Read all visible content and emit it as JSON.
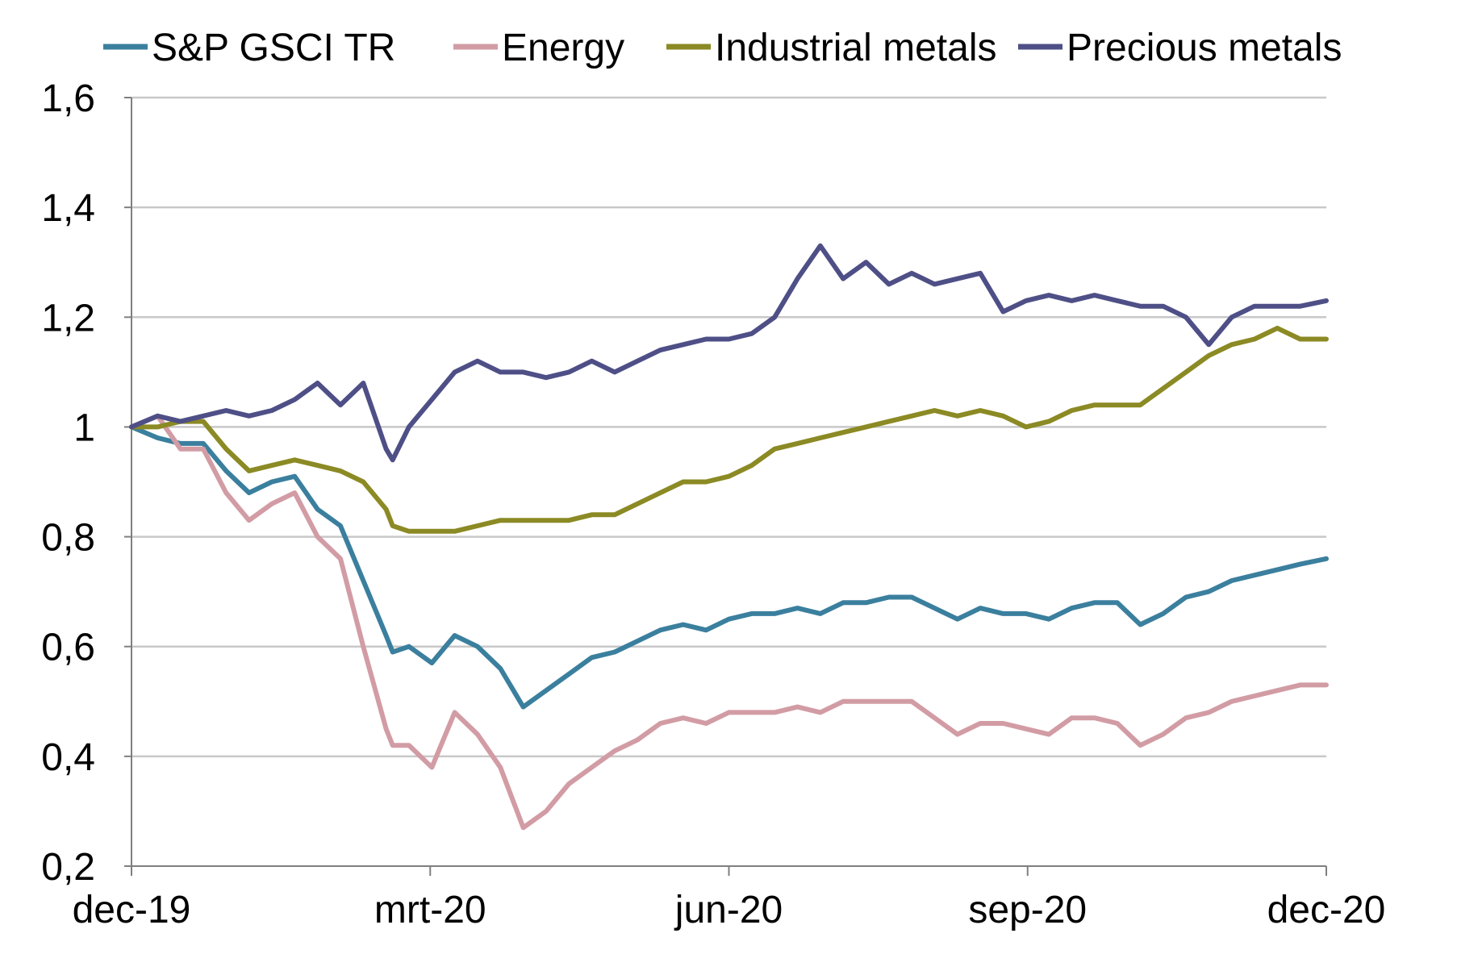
{
  "chart_data": {
    "type": "line",
    "title": "",
    "xlabel": "",
    "ylabel": "",
    "ylim": [
      0.2,
      1.6
    ],
    "yticks": [
      "0,2",
      "0,4",
      "0,6",
      "0,8",
      "1",
      "1,2",
      "1,4",
      "1,6"
    ],
    "xticks": [
      "dec-19",
      "mrt-20",
      "jun-20",
      "sep-20",
      "dec-20"
    ],
    "xlim": [
      "2019-12-31",
      "2020-12-31"
    ],
    "grid": "horizontal",
    "legend_position": "top",
    "series": [
      {
        "name": "S&P GSCI TR",
        "color": "#3b7f9e",
        "x": [
          "2019-12-31",
          "2020-01-08",
          "2020-01-15",
          "2020-01-22",
          "2020-01-29",
          "2020-02-05",
          "2020-02-12",
          "2020-02-19",
          "2020-02-26",
          "2020-03-04",
          "2020-03-11",
          "2020-03-18",
          "2020-03-20",
          "2020-03-25",
          "2020-04-01",
          "2020-04-08",
          "2020-04-15",
          "2020-04-22",
          "2020-04-29",
          "2020-05-06",
          "2020-05-13",
          "2020-05-20",
          "2020-05-27",
          "2020-06-03",
          "2020-06-10",
          "2020-06-17",
          "2020-06-24",
          "2020-07-01",
          "2020-07-08",
          "2020-07-15",
          "2020-07-22",
          "2020-07-29",
          "2020-08-05",
          "2020-08-12",
          "2020-08-19",
          "2020-08-26",
          "2020-09-02",
          "2020-09-09",
          "2020-09-16",
          "2020-09-23",
          "2020-09-30",
          "2020-10-07",
          "2020-10-14",
          "2020-10-21",
          "2020-10-28",
          "2020-11-04",
          "2020-11-11",
          "2020-11-18",
          "2020-11-25",
          "2020-12-02",
          "2020-12-09",
          "2020-12-16",
          "2020-12-23",
          "2020-12-31"
        ],
        "values": [
          1.0,
          0.98,
          0.97,
          0.97,
          0.92,
          0.88,
          0.9,
          0.91,
          0.85,
          0.82,
          0.72,
          0.62,
          0.59,
          0.6,
          0.57,
          0.62,
          0.6,
          0.56,
          0.49,
          0.52,
          0.55,
          0.58,
          0.59,
          0.61,
          0.63,
          0.64,
          0.63,
          0.65,
          0.66,
          0.66,
          0.67,
          0.66,
          0.68,
          0.68,
          0.69,
          0.69,
          0.67,
          0.65,
          0.67,
          0.66,
          0.66,
          0.65,
          0.67,
          0.68,
          0.68,
          0.64,
          0.66,
          0.69,
          0.7,
          0.72,
          0.73,
          0.74,
          0.75,
          0.76
        ]
      },
      {
        "name": "Energy",
        "color": "#d29ca5",
        "x": [
          "2019-12-31",
          "2020-01-08",
          "2020-01-15",
          "2020-01-22",
          "2020-01-29",
          "2020-02-05",
          "2020-02-12",
          "2020-02-19",
          "2020-02-26",
          "2020-03-04",
          "2020-03-11",
          "2020-03-18",
          "2020-03-20",
          "2020-03-25",
          "2020-04-01",
          "2020-04-08",
          "2020-04-15",
          "2020-04-22",
          "2020-04-29",
          "2020-05-06",
          "2020-05-13",
          "2020-05-20",
          "2020-05-27",
          "2020-06-03",
          "2020-06-10",
          "2020-06-17",
          "2020-06-24",
          "2020-07-01",
          "2020-07-08",
          "2020-07-15",
          "2020-07-22",
          "2020-07-29",
          "2020-08-05",
          "2020-08-12",
          "2020-08-19",
          "2020-08-26",
          "2020-09-02",
          "2020-09-09",
          "2020-09-16",
          "2020-09-23",
          "2020-09-30",
          "2020-10-07",
          "2020-10-14",
          "2020-10-21",
          "2020-10-28",
          "2020-11-04",
          "2020-11-11",
          "2020-11-18",
          "2020-11-25",
          "2020-12-02",
          "2020-12-09",
          "2020-12-16",
          "2020-12-23",
          "2020-12-31"
        ],
        "values": [
          1.0,
          1.02,
          0.96,
          0.96,
          0.88,
          0.83,
          0.86,
          0.88,
          0.8,
          0.76,
          0.6,
          0.45,
          0.42,
          0.42,
          0.38,
          0.48,
          0.44,
          0.38,
          0.27,
          0.3,
          0.35,
          0.38,
          0.41,
          0.43,
          0.46,
          0.47,
          0.46,
          0.48,
          0.48,
          0.48,
          0.49,
          0.48,
          0.5,
          0.5,
          0.5,
          0.5,
          0.47,
          0.44,
          0.46,
          0.46,
          0.45,
          0.44,
          0.47,
          0.47,
          0.46,
          0.42,
          0.44,
          0.47,
          0.48,
          0.5,
          0.51,
          0.52,
          0.53,
          0.53
        ]
      },
      {
        "name": "Industrial metals",
        "color": "#8b8a24",
        "x": [
          "2019-12-31",
          "2020-01-08",
          "2020-01-15",
          "2020-01-22",
          "2020-01-29",
          "2020-02-05",
          "2020-02-12",
          "2020-02-19",
          "2020-02-26",
          "2020-03-04",
          "2020-03-11",
          "2020-03-18",
          "2020-03-20",
          "2020-03-25",
          "2020-04-01",
          "2020-04-08",
          "2020-04-15",
          "2020-04-22",
          "2020-04-29",
          "2020-05-06",
          "2020-05-13",
          "2020-05-20",
          "2020-05-27",
          "2020-06-03",
          "2020-06-10",
          "2020-06-17",
          "2020-06-24",
          "2020-07-01",
          "2020-07-08",
          "2020-07-15",
          "2020-07-22",
          "2020-07-29",
          "2020-08-05",
          "2020-08-12",
          "2020-08-19",
          "2020-08-26",
          "2020-09-02",
          "2020-09-09",
          "2020-09-16",
          "2020-09-23",
          "2020-09-30",
          "2020-10-07",
          "2020-10-14",
          "2020-10-21",
          "2020-10-28",
          "2020-11-04",
          "2020-11-11",
          "2020-11-18",
          "2020-11-25",
          "2020-12-02",
          "2020-12-09",
          "2020-12-16",
          "2020-12-23",
          "2020-12-31"
        ],
        "values": [
          1.0,
          1.0,
          1.01,
          1.01,
          0.96,
          0.92,
          0.93,
          0.94,
          0.93,
          0.92,
          0.9,
          0.85,
          0.82,
          0.81,
          0.81,
          0.81,
          0.82,
          0.83,
          0.83,
          0.83,
          0.83,
          0.84,
          0.84,
          0.86,
          0.88,
          0.9,
          0.9,
          0.91,
          0.93,
          0.96,
          0.97,
          0.98,
          0.99,
          1.0,
          1.01,
          1.02,
          1.03,
          1.02,
          1.03,
          1.02,
          1.0,
          1.01,
          1.03,
          1.04,
          1.04,
          1.04,
          1.07,
          1.1,
          1.13,
          1.15,
          1.16,
          1.18,
          1.16,
          1.16
        ]
      },
      {
        "name": "Precious metals",
        "color": "#4f4f87",
        "x": [
          "2019-12-31",
          "2020-01-08",
          "2020-01-15",
          "2020-01-22",
          "2020-01-29",
          "2020-02-05",
          "2020-02-12",
          "2020-02-19",
          "2020-02-26",
          "2020-03-04",
          "2020-03-11",
          "2020-03-18",
          "2020-03-20",
          "2020-03-25",
          "2020-04-01",
          "2020-04-08",
          "2020-04-15",
          "2020-04-22",
          "2020-04-29",
          "2020-05-06",
          "2020-05-13",
          "2020-05-20",
          "2020-05-27",
          "2020-06-03",
          "2020-06-10",
          "2020-06-17",
          "2020-06-24",
          "2020-07-01",
          "2020-07-08",
          "2020-07-15",
          "2020-07-22",
          "2020-07-29",
          "2020-08-05",
          "2020-08-12",
          "2020-08-19",
          "2020-08-26",
          "2020-09-02",
          "2020-09-09",
          "2020-09-16",
          "2020-09-23",
          "2020-09-30",
          "2020-10-07",
          "2020-10-14",
          "2020-10-21",
          "2020-10-28",
          "2020-11-04",
          "2020-11-11",
          "2020-11-18",
          "2020-11-25",
          "2020-12-02",
          "2020-12-09",
          "2020-12-16",
          "2020-12-23",
          "2020-12-31"
        ],
        "values": [
          1.0,
          1.02,
          1.01,
          1.02,
          1.03,
          1.02,
          1.03,
          1.05,
          1.08,
          1.04,
          1.08,
          0.96,
          0.94,
          1.0,
          1.05,
          1.1,
          1.12,
          1.1,
          1.1,
          1.09,
          1.1,
          1.12,
          1.1,
          1.12,
          1.14,
          1.15,
          1.16,
          1.16,
          1.17,
          1.2,
          1.27,
          1.33,
          1.27,
          1.3,
          1.26,
          1.28,
          1.26,
          1.27,
          1.28,
          1.21,
          1.23,
          1.24,
          1.23,
          1.24,
          1.23,
          1.22,
          1.22,
          1.2,
          1.15,
          1.2,
          1.22,
          1.22,
          1.22,
          1.23
        ]
      }
    ]
  }
}
